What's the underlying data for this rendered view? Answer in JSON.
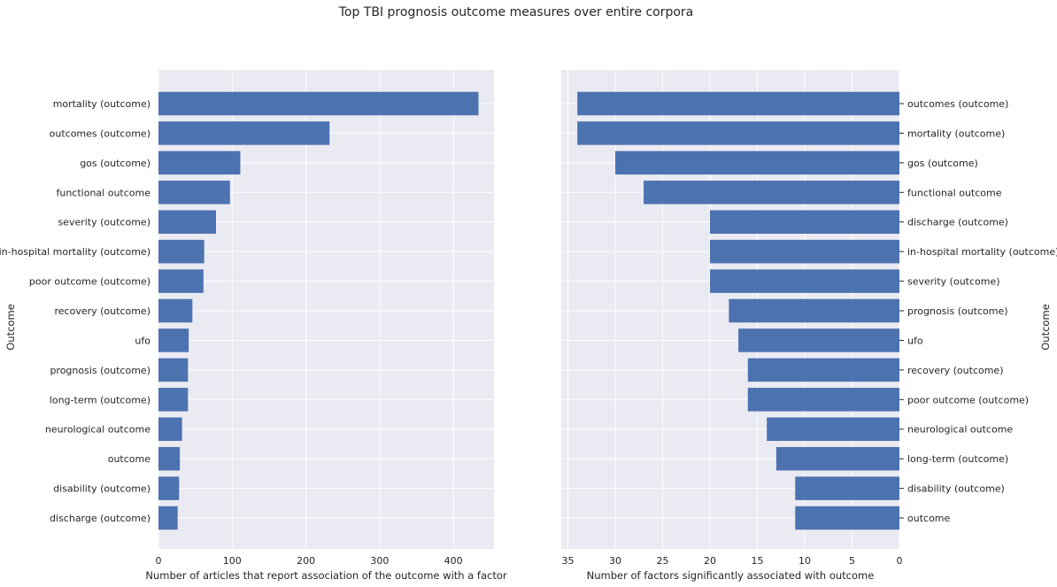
{
  "title": "Top TBI prognosis outcome measures over entire corpora",
  "colors": {
    "bar": "#4c72b0",
    "panel_background": "#eaeaf2",
    "grid": "#ffffff"
  },
  "chart_data": [
    {
      "type": "bar",
      "orientation": "horizontal",
      "categories": [
        "mortality (outcome)",
        "outcomes (outcome)",
        "gos (outcome)",
        "functional outcome",
        "severity (outcome)",
        "in-hospital mortality (outcome)",
        "poor outcome (outcome)",
        "recovery (outcome)",
        "ufo",
        "prognosis (outcome)",
        "long-term (outcome)",
        "neurological outcome",
        "outcome",
        "disability (outcome)",
        "discharge (outcome)"
      ],
      "values": [
        434,
        232,
        111,
        97,
        78,
        62,
        61,
        46,
        41,
        40,
        40,
        32,
        29,
        28,
        26
      ],
      "xlabel": "Number of articles that report association of the outcome with a factor",
      "ylabel": "Outcome",
      "xlim": [
        0,
        455
      ],
      "xticks": [
        0,
        100,
        200,
        300,
        400
      ],
      "grid": true
    },
    {
      "type": "bar",
      "orientation": "horizontal",
      "x_axis_inverted": true,
      "categories": [
        "outcomes (outcome)",
        "mortality (outcome)",
        "gos (outcome)",
        "functional outcome",
        "discharge (outcome)",
        "in-hospital mortality (outcome)",
        "severity (outcome)",
        "prognosis (outcome)",
        "ufo",
        "recovery (outcome)",
        "poor outcome (outcome)",
        "neurological outcome",
        "long-term (outcome)",
        "disability (outcome)",
        "outcome"
      ],
      "values": [
        34,
        34,
        30,
        27,
        20,
        20,
        20,
        18,
        17,
        16,
        16,
        14,
        13,
        11,
        11
      ],
      "xlabel": "Number of factors significantly associated with outcome",
      "ylabel": "Outcome",
      "xlim": [
        35.7,
        0
      ],
      "xticks": [
        35,
        30,
        25,
        20,
        15,
        10,
        5,
        0
      ],
      "grid": true
    }
  ]
}
